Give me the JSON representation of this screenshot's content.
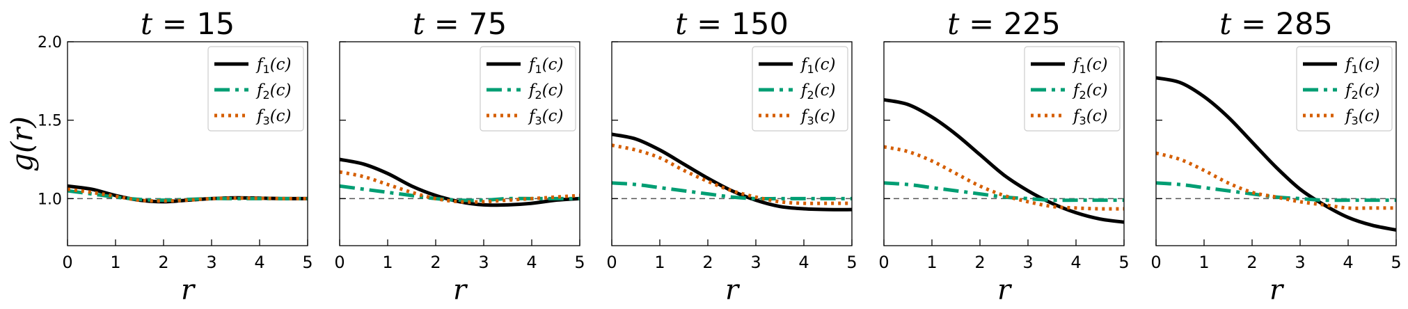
{
  "figure": {
    "ylabel": "g(r)",
    "xlabel": "r"
  },
  "legend": {
    "entries": [
      {
        "fn": "f",
        "sub": "1",
        "arg": "(c)"
      },
      {
        "fn": "f",
        "sub": "2",
        "arg": "(c)"
      },
      {
        "fn": "f",
        "sub": "3",
        "arg": "(c)"
      }
    ]
  },
  "colors": {
    "f1": "#000000",
    "f2": "#009E73",
    "f3": "#D55E00",
    "reference": "#555555"
  },
  "chart_data": [
    {
      "type": "line",
      "title": "t = 15",
      "title_var": "t",
      "title_value": "15",
      "xlabel": "r",
      "ylabel": "g(r)",
      "xlim": [
        0,
        5
      ],
      "ylim": [
        0.7,
        2.0
      ],
      "xticks": [
        0,
        1,
        2,
        3,
        4,
        5
      ],
      "yticks": [
        1.0,
        1.5,
        2.0
      ],
      "ytick_labels": [
        "1.0",
        "1.5",
        "2.0"
      ],
      "reference_line": 1.0,
      "legend_position": "top-right",
      "x": [
        0,
        0.5,
        1,
        1.5,
        2,
        2.5,
        3,
        3.5,
        4,
        4.5,
        5
      ],
      "series": [
        {
          "name": "f1(c)",
          "values": [
            1.08,
            1.06,
            1.02,
            0.99,
            0.98,
            0.99,
            1.0,
            1.005,
            1.003,
            1.0,
            1.0
          ]
        },
        {
          "name": "f2(c)",
          "values": [
            1.05,
            1.03,
            1.01,
            0.995,
            0.99,
            0.995,
            1.0,
            1.0,
            1.0,
            1.0,
            1.0
          ]
        },
        {
          "name": "f3(c)",
          "values": [
            1.06,
            1.04,
            1.015,
            0.99,
            0.985,
            0.99,
            1.0,
            1.003,
            1.002,
            1.0,
            1.0
          ]
        }
      ]
    },
    {
      "type": "line",
      "title": "t = 75",
      "title_var": "t",
      "title_value": "75",
      "xlabel": "r",
      "xlim": [
        0,
        5
      ],
      "ylim": [
        0.7,
        2.0
      ],
      "xticks": [
        0,
        1,
        2,
        3,
        4,
        5
      ],
      "reference_line": 1.0,
      "legend_position": "top-right",
      "x": [
        0,
        0.5,
        1,
        1.5,
        2,
        2.5,
        3,
        3.5,
        4,
        4.5,
        5
      ],
      "series": [
        {
          "name": "f1(c)",
          "values": [
            1.25,
            1.22,
            1.16,
            1.08,
            1.02,
            0.98,
            0.96,
            0.96,
            0.97,
            0.99,
            1.0
          ]
        },
        {
          "name": "f2(c)",
          "values": [
            1.08,
            1.06,
            1.04,
            1.02,
            1.0,
            0.99,
            0.99,
            1.0,
            1.0,
            1.0,
            1.0
          ]
        },
        {
          "name": "f3(c)",
          "values": [
            1.17,
            1.14,
            1.09,
            1.04,
            1.0,
            0.98,
            0.98,
            0.99,
            1.0,
            1.01,
            1.02
          ]
        }
      ]
    },
    {
      "type": "line",
      "title": "t = 150",
      "title_var": "t",
      "title_value": "150",
      "xlabel": "r",
      "xlim": [
        0,
        5
      ],
      "ylim": [
        0.7,
        2.0
      ],
      "xticks": [
        0,
        1,
        2,
        3,
        4,
        5
      ],
      "reference_line": 1.0,
      "legend_position": "top-right",
      "x": [
        0,
        0.5,
        1,
        1.5,
        2,
        2.5,
        3,
        3.5,
        4,
        4.5,
        5
      ],
      "series": [
        {
          "name": "f1(c)",
          "values": [
            1.41,
            1.38,
            1.31,
            1.22,
            1.13,
            1.05,
            0.99,
            0.95,
            0.935,
            0.93,
            0.93
          ]
        },
        {
          "name": "f2(c)",
          "values": [
            1.1,
            1.09,
            1.07,
            1.05,
            1.03,
            1.01,
            1.0,
            1.0,
            1.0,
            1.0,
            1.0
          ]
        },
        {
          "name": "f3(c)",
          "values": [
            1.34,
            1.31,
            1.26,
            1.18,
            1.11,
            1.05,
            1.01,
            0.98,
            0.97,
            0.97,
            0.97
          ]
        }
      ]
    },
    {
      "type": "line",
      "title": "t = 225",
      "title_var": "t",
      "title_value": "225",
      "xlabel": "r",
      "xlim": [
        0,
        5
      ],
      "ylim": [
        0.7,
        2.0
      ],
      "xticks": [
        0,
        1,
        2,
        3,
        4,
        5
      ],
      "reference_line": 1.0,
      "legend_position": "top-right",
      "x": [
        0,
        0.5,
        1,
        1.5,
        2,
        2.5,
        3,
        3.5,
        4,
        4.5,
        5
      ],
      "series": [
        {
          "name": "f1(c)",
          "values": [
            1.63,
            1.6,
            1.52,
            1.41,
            1.28,
            1.15,
            1.05,
            0.97,
            0.91,
            0.87,
            0.85
          ]
        },
        {
          "name": "f2(c)",
          "values": [
            1.1,
            1.09,
            1.07,
            1.05,
            1.03,
            1.01,
            1.0,
            0.99,
            0.99,
            0.99,
            0.99
          ]
        },
        {
          "name": "f3(c)",
          "values": [
            1.33,
            1.3,
            1.24,
            1.16,
            1.08,
            1.02,
            0.98,
            0.95,
            0.94,
            0.935,
            0.935
          ]
        }
      ]
    },
    {
      "type": "line",
      "title": "t = 285",
      "title_var": "t",
      "title_value": "285",
      "xlabel": "r",
      "xlim": [
        0,
        5
      ],
      "ylim": [
        0.7,
        2.0
      ],
      "xticks": [
        0,
        1,
        2,
        3,
        4,
        5
      ],
      "reference_line": 1.0,
      "legend_position": "top-right",
      "x": [
        0,
        0.5,
        1,
        1.5,
        2,
        2.5,
        3,
        3.5,
        4,
        4.5,
        5
      ],
      "series": [
        {
          "name": "f1(c)",
          "values": [
            1.77,
            1.74,
            1.65,
            1.52,
            1.36,
            1.2,
            1.06,
            0.96,
            0.88,
            0.83,
            0.8
          ]
        },
        {
          "name": "f2(c)",
          "values": [
            1.1,
            1.09,
            1.07,
            1.05,
            1.03,
            1.01,
            1.0,
            0.99,
            0.99,
            0.99,
            0.99
          ]
        },
        {
          "name": "f3(c)",
          "values": [
            1.29,
            1.25,
            1.18,
            1.1,
            1.04,
            1.01,
            0.98,
            0.96,
            0.94,
            0.94,
            0.94
          ]
        }
      ]
    }
  ]
}
